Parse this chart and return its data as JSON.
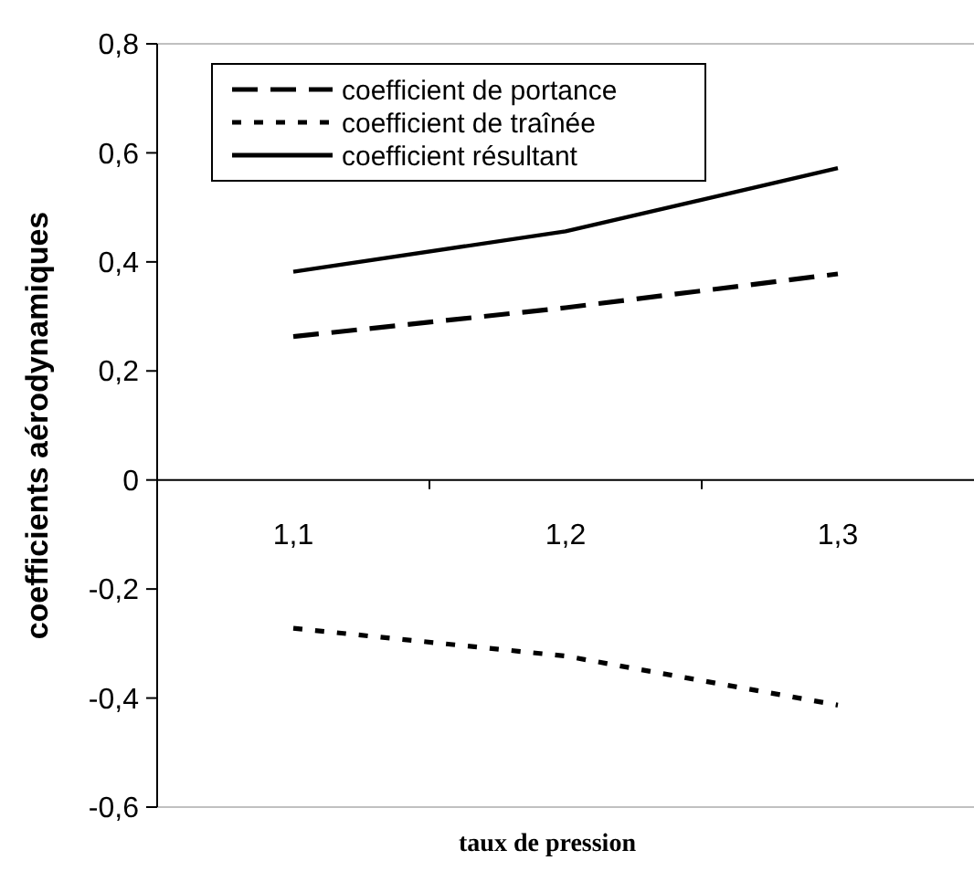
{
  "chart_data": {
    "type": "line",
    "xlabel": "taux de pression",
    "ylabel": "coefficients aérodynamiques",
    "categories": [
      "1,1",
      "1,2",
      "1,3"
    ],
    "series": [
      {
        "name": "coefficient de portance",
        "color": "#000000",
        "line_style": "dashed",
        "values": [
          0.263,
          0.316,
          0.378
        ]
      },
      {
        "name": "coefficient de traînée",
        "color": "#000000",
        "line_style": "dotted",
        "values": [
          -0.272,
          -0.323,
          -0.413
        ]
      },
      {
        "name": "coefficient résultant",
        "color": "#000000",
        "line_style": "solid",
        "values": [
          0.382,
          0.456,
          0.572
        ]
      }
    ],
    "ylim": [
      -0.6,
      0.8
    ],
    "yticks": [
      {
        "value": -0.6,
        "label": "-0,6"
      },
      {
        "value": -0.4,
        "label": "-0,4"
      },
      {
        "value": -0.2,
        "label": "-0,2"
      },
      0,
      {
        "value": 0.2,
        "label": "0,2"
      },
      {
        "value": 0.4,
        "label": "0,4"
      },
      {
        "value": 0.6,
        "label": "0,6"
      },
      {
        "value": 0.8,
        "label": "0,8"
      }
    ],
    "grid": false,
    "legend": "top left",
    "marker": "none"
  }
}
